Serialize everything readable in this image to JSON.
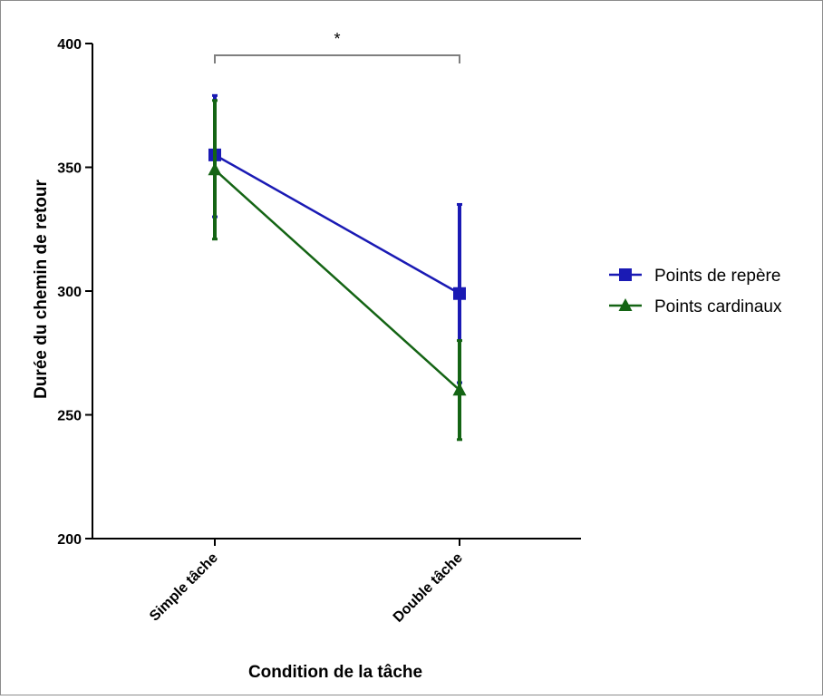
{
  "chart_data": {
    "type": "line",
    "title": "",
    "xlabel": "Condition de la tâche",
    "ylabel": "Durée du chemin de retour",
    "categories": [
      "Simple tâche",
      "Double tâche"
    ],
    "ylim": [
      200,
      400
    ],
    "yticks": [
      200,
      250,
      300,
      350,
      400
    ],
    "ytick_labels": [
      "200",
      "250",
      "300",
      "350",
      "400"
    ],
    "grid": false,
    "legend_position": "right",
    "series": [
      {
        "name": "Points de repère",
        "values": [
          355,
          299
        ],
        "error_low": [
          330,
          263
        ],
        "error_high": [
          379,
          335
        ],
        "color": "#1a1ab4",
        "marker": "square"
      },
      {
        "name": "Points cardinaux",
        "values": [
          349,
          260
        ],
        "error_low": [
          321,
          240
        ],
        "error_high": [
          377,
          280
        ],
        "color": "#146414",
        "marker": "triangle"
      }
    ],
    "annotations": [
      {
        "type": "significance-bracket",
        "between": [
          "Simple tâche",
          "Double tâche"
        ],
        "text": "*"
      }
    ]
  }
}
